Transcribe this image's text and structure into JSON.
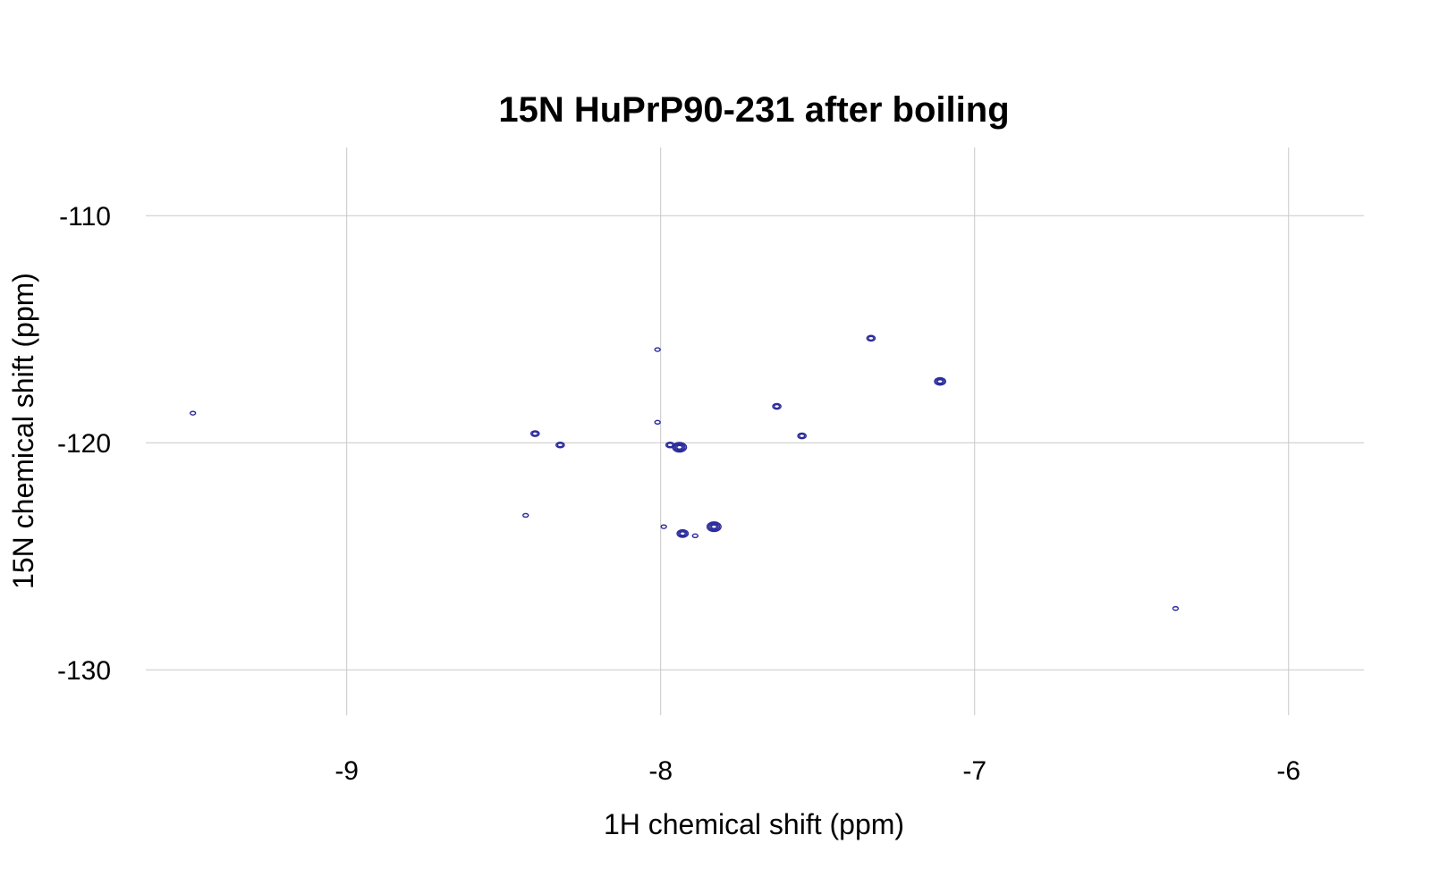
{
  "chart_data": {
    "type": "scatter",
    "title": "15N HuPrP90-231 after boiling",
    "xlabel": "1H chemical shift (ppm)",
    "ylabel": "15N chemical shift (ppm)",
    "xlim": [
      -9.64,
      -5.76
    ],
    "ylim": [
      -132,
      -107
    ],
    "x_ticks": [
      -9,
      -8,
      -7,
      -6
    ],
    "y_ticks": [
      -110,
      -120,
      -130
    ],
    "x_tick_labels": [
      "-9",
      "-8",
      "-7",
      "-6"
    ],
    "y_tick_labels": [
      "-110",
      "-120",
      "-130"
    ],
    "grid": true,
    "legend": "none",
    "peak_color": "#2b2b9c",
    "grid_color": "#c8c8c8",
    "peaks": [
      {
        "x": -7.33,
        "y": -115.4,
        "intensity": 2
      },
      {
        "x": -8.01,
        "y": -115.9,
        "intensity": 1
      },
      {
        "x": -7.11,
        "y": -117.3,
        "intensity": 3
      },
      {
        "x": -7.63,
        "y": -118.4,
        "intensity": 2
      },
      {
        "x": -8.01,
        "y": -119.1,
        "intensity": 1
      },
      {
        "x": -8.4,
        "y": -119.6,
        "intensity": 2
      },
      {
        "x": -7.55,
        "y": -119.7,
        "intensity": 2
      },
      {
        "x": -8.32,
        "y": -120.1,
        "intensity": 2
      },
      {
        "x": -7.94,
        "y": -120.2,
        "intensity": 4
      },
      {
        "x": -7.97,
        "y": -120.1,
        "intensity": 2
      },
      {
        "x": -8.43,
        "y": -123.2,
        "intensity": 1
      },
      {
        "x": -7.83,
        "y": -123.7,
        "intensity": 4
      },
      {
        "x": -7.99,
        "y": -123.7,
        "intensity": 1
      },
      {
        "x": -7.93,
        "y": -124.0,
        "intensity": 3
      },
      {
        "x": -7.89,
        "y": -124.1,
        "intensity": 1
      },
      {
        "x": -6.36,
        "y": -127.3,
        "intensity": 1
      },
      {
        "x": -9.49,
        "y": -118.7,
        "intensity": 1
      }
    ]
  }
}
